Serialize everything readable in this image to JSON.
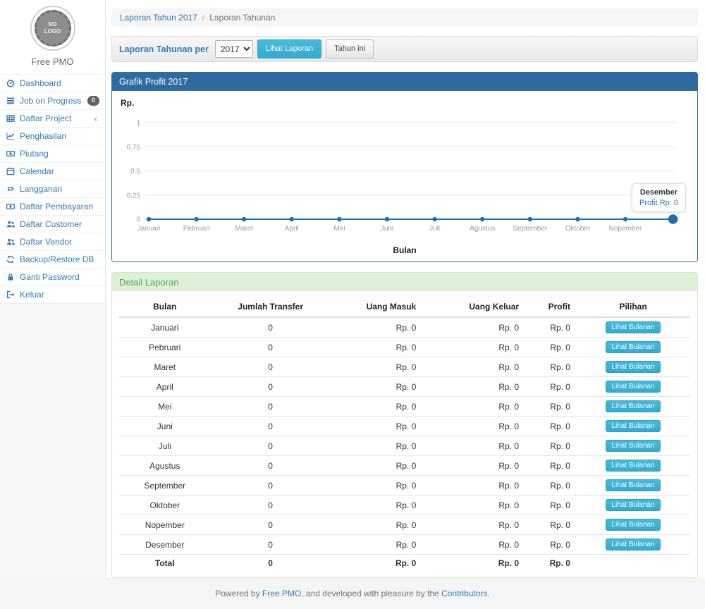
{
  "colors": {
    "link_blue": "#337ab7",
    "panel_header_blue": "#2d6ba1",
    "success_header_bg": "#dff0d8",
    "success_header_text": "#54a254",
    "info_button": "#47badb",
    "chart_line": "#1f6dad"
  },
  "sidebar": {
    "logo_text": "NO LOGO",
    "brand": "Free PMO",
    "items": [
      {
        "slug": "dashboard",
        "label": "Dashboard",
        "icon": "dashboard"
      },
      {
        "slug": "job-on-progress",
        "label": "Job on Progress",
        "icon": "tasks",
        "badge": "0"
      },
      {
        "slug": "daftar-project",
        "label": "Daftar Project",
        "icon": "table",
        "has_submenu": true
      },
      {
        "slug": "penghasilan",
        "label": "Penghasilan",
        "icon": "line-chart"
      },
      {
        "slug": "piutang",
        "label": "Piutang",
        "icon": "money"
      },
      {
        "slug": "calendar",
        "label": "Calendar",
        "icon": "calendar"
      },
      {
        "slug": "langganan",
        "label": "Langganan",
        "icon": "retweet"
      },
      {
        "slug": "daftar-pembayaran",
        "label": "Daftar Pembayaran",
        "icon": "money"
      },
      {
        "slug": "daftar-customer",
        "label": "Daftar Customer",
        "icon": "users"
      },
      {
        "slug": "daftar-vendor",
        "label": "Daftar Vendor",
        "icon": "users"
      },
      {
        "slug": "backup-restore-db",
        "label": "Backup/Restore DB",
        "icon": "refresh"
      },
      {
        "slug": "ganti-password",
        "label": "Ganti Password",
        "icon": "lock"
      },
      {
        "slug": "keluar",
        "label": "Keluar",
        "icon": "sign-out"
      }
    ]
  },
  "breadcrumb": {
    "link": "Laporan Tahun 2017",
    "separator": "/",
    "current": "Laporan Tahunan"
  },
  "filter": {
    "label": "Laporan Tahunan per",
    "year_value": "2017",
    "submit_label": "Lihat Laporan",
    "this_year_label": "Tahun ini"
  },
  "chart_panel": {
    "title": "Grafik Profit 2017"
  },
  "chart_data": {
    "type": "line",
    "title": "Grafik Profit 2017",
    "y_axis_label": "Rp.",
    "x_axis_label": "Bulan",
    "categories": [
      "Januari",
      "Pebruari",
      "Maret",
      "April",
      "Mei",
      "Juni",
      "Juli",
      "Agustus",
      "September",
      "Oktober",
      "Nopember",
      "Desember"
    ],
    "series": [
      {
        "name": "Profit",
        "values": [
          0,
          0,
          0,
          0,
          0,
          0,
          0,
          0,
          0,
          0,
          0,
          0
        ]
      }
    ],
    "y_ticks": [
      0,
      0.25,
      0.5,
      0.75,
      1
    ],
    "ylim": [
      0,
      1
    ],
    "grid": true,
    "legend": false,
    "highlighted_point": "Desember",
    "tooltip": {
      "title": "Desember",
      "value": "Profit Rp: 0"
    }
  },
  "table_panel": {
    "title": "Detail Laporan",
    "columns": [
      "Bulan",
      "Jumlah Transfer",
      "Uang Masuk",
      "Uang Keluar",
      "Profit",
      "Pilihan"
    ],
    "action_label": "Lihat Bulanan",
    "rows": [
      {
        "bulan": "Januari",
        "jumlah_transfer": "0",
        "uang_masuk": "Rp. 0",
        "uang_keluar": "Rp. 0",
        "profit": "Rp. 0"
      },
      {
        "bulan": "Pebruari",
        "jumlah_transfer": "0",
        "uang_masuk": "Rp. 0",
        "uang_keluar": "Rp. 0",
        "profit": "Rp. 0"
      },
      {
        "bulan": "Maret",
        "jumlah_transfer": "0",
        "uang_masuk": "Rp. 0",
        "uang_keluar": "Rp. 0",
        "profit": "Rp. 0"
      },
      {
        "bulan": "April",
        "jumlah_transfer": "0",
        "uang_masuk": "Rp. 0",
        "uang_keluar": "Rp. 0",
        "profit": "Rp. 0"
      },
      {
        "bulan": "Mei",
        "jumlah_transfer": "0",
        "uang_masuk": "Rp. 0",
        "uang_keluar": "Rp. 0",
        "profit": "Rp. 0"
      },
      {
        "bulan": "Juni",
        "jumlah_transfer": "0",
        "uang_masuk": "Rp. 0",
        "uang_keluar": "Rp. 0",
        "profit": "Rp. 0"
      },
      {
        "bulan": "Juli",
        "jumlah_transfer": "0",
        "uang_masuk": "Rp. 0",
        "uang_keluar": "Rp. 0",
        "profit": "Rp. 0"
      },
      {
        "bulan": "Agustus",
        "jumlah_transfer": "0",
        "uang_masuk": "Rp. 0",
        "uang_keluar": "Rp. 0",
        "profit": "Rp. 0"
      },
      {
        "bulan": "September",
        "jumlah_transfer": "0",
        "uang_masuk": "Rp. 0",
        "uang_keluar": "Rp. 0",
        "profit": "Rp. 0"
      },
      {
        "bulan": "Oktober",
        "jumlah_transfer": "0",
        "uang_masuk": "Rp. 0",
        "uang_keluar": "Rp. 0",
        "profit": "Rp. 0"
      },
      {
        "bulan": "Nopember",
        "jumlah_transfer": "0",
        "uang_masuk": "Rp. 0",
        "uang_keluar": "Rp. 0",
        "profit": "Rp. 0"
      },
      {
        "bulan": "Desember",
        "jumlah_transfer": "0",
        "uang_masuk": "Rp. 0",
        "uang_keluar": "Rp. 0",
        "profit": "Rp. 0"
      }
    ],
    "total": {
      "bulan": "Total",
      "jumlah_transfer": "0",
      "uang_masuk": "Rp. 0",
      "uang_keluar": "Rp. 0",
      "profit": "Rp. 0"
    }
  },
  "footer": {
    "prefix": "Powered by ",
    "link1": "Free PMO",
    "middle": ", and developed with pleasure by the ",
    "link2": "Contributors."
  }
}
